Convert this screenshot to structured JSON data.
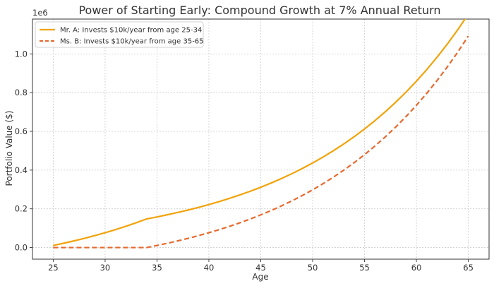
{
  "chart_data": {
    "type": "line",
    "title": "Power of Starting Early: Compound Growth at 7% Annual Return",
    "xlabel": "Age",
    "ylabel": "Portfolio Value ($)",
    "y_offset_label": "1e6",
    "xlim": [
      23,
      67
    ],
    "ylim": [
      -0.06,
      1.18
    ],
    "y_scale_note": "values in millions (1e6)",
    "x_ticks": [
      25,
      30,
      35,
      40,
      45,
      50,
      55,
      60,
      65
    ],
    "x_tick_labels": [
      "25",
      "30",
      "35",
      "40",
      "45",
      "50",
      "55",
      "60",
      "65"
    ],
    "y_ticks": [
      0.0,
      0.2,
      0.4,
      0.6,
      0.8,
      1.0
    ],
    "y_tick_labels": [
      "0.0",
      "0.2",
      "0.4",
      "0.6",
      "0.8",
      "1.0"
    ],
    "grid": true,
    "legend_position": "top-left",
    "x": [
      25,
      26,
      27,
      28,
      29,
      30,
      31,
      32,
      33,
      34,
      35,
      36,
      37,
      38,
      39,
      40,
      41,
      42,
      43,
      44,
      45,
      46,
      47,
      48,
      49,
      50,
      51,
      52,
      53,
      54,
      55,
      56,
      57,
      58,
      59,
      60,
      61,
      62,
      63,
      64,
      65
    ],
    "series": [
      {
        "name": "Mr. A: Invests $10k/year from age 25-34",
        "color": "#f0a30a",
        "dash": "solid",
        "values": [
          0.0107,
          0.0221,
          0.0344,
          0.0475,
          0.0615,
          0.0765,
          0.0926,
          0.1097,
          0.1281,
          0.1478,
          0.1582,
          0.1693,
          0.1812,
          0.1939,
          0.2075,
          0.222,
          0.2376,
          0.2542,
          0.272,
          0.291,
          0.3114,
          0.3332,
          0.3565,
          0.3815,
          0.4082,
          0.4368,
          0.4673,
          0.5,
          0.535,
          0.5725,
          0.6126,
          0.6554,
          0.7013,
          0.7504,
          0.8029,
          0.8592,
          0.9193,
          0.9836,
          1.0525,
          1.1262,
          1.205
        ]
      },
      {
        "name": "Ms. B: Invests $10k/year from age 35-65",
        "color": "#e8692e",
        "dash": "dashed",
        "values": [
          0,
          0,
          0,
          0,
          0,
          0,
          0,
          0,
          0,
          0,
          0.0107,
          0.0221,
          0.0344,
          0.0475,
          0.0615,
          0.0765,
          0.0926,
          0.1097,
          0.1281,
          0.1478,
          0.1688,
          0.1913,
          0.2154,
          0.2411,
          0.2687,
          0.2982,
          0.3298,
          0.3636,
          0.3997,
          0.4384,
          0.4799,
          0.5242,
          0.5716,
          0.6223,
          0.6766,
          0.7348,
          0.7969,
          0.8634,
          0.9346,
          1.0108,
          1.0923
        ]
      }
    ]
  }
}
